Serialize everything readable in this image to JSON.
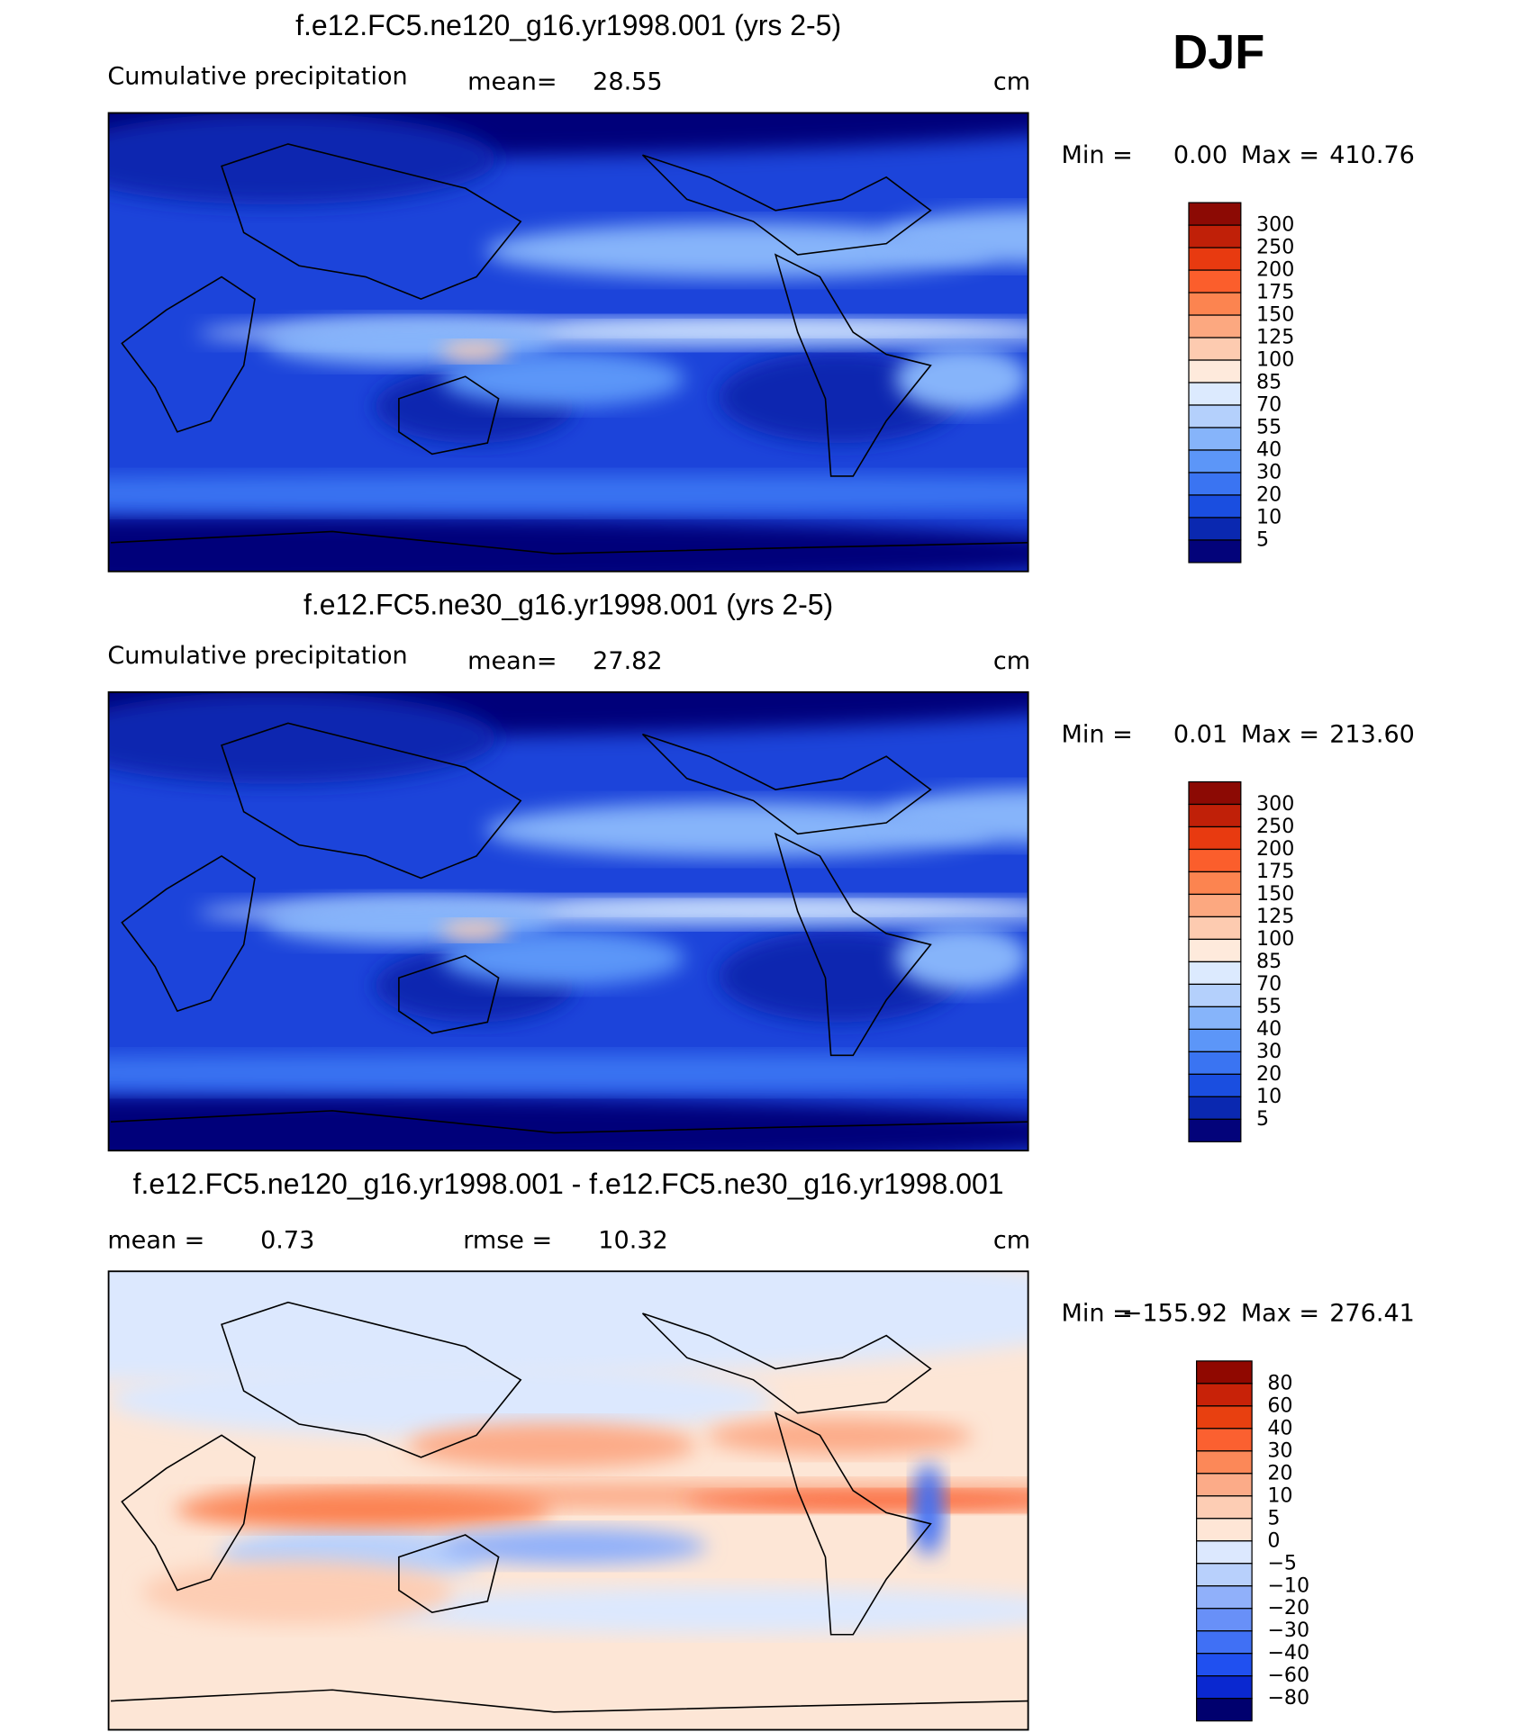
{
  "season": "DJF",
  "panels": [
    {
      "title": "f.e12.FC5.ne120_g16.yr1998.001 (yrs 2-5)",
      "label": "Cumulative precipitation",
      "stat1_label": "mean=",
      "stat1_value": "28.55",
      "units": "cm",
      "min_label": "Min =",
      "min_value": "0.00",
      "max_label": "Max =",
      "max_value": "410.76",
      "colorbar": {
        "labels": [
          "300",
          "250",
          "200",
          "175",
          "150",
          "125",
          "100",
          "85",
          "70",
          "55",
          "40",
          "30",
          "20",
          "10",
          "5"
        ],
        "colors": [
          "#8c0a04",
          "#c02008",
          "#e83a10",
          "#fb5e2c",
          "#fc8450",
          "#fca880",
          "#fdcbb0",
          "#feeadc",
          "#dceafe",
          "#b4d0fc",
          "#86b4fa",
          "#5c96f8",
          "#3a74f2",
          "#1a4ee0",
          "#0a28b0",
          "#03037a"
        ]
      }
    },
    {
      "title": "f.e12.FC5.ne30_g16.yr1998.001 (yrs 2-5)",
      "label": "Cumulative precipitation",
      "stat1_label": "mean=",
      "stat1_value": "27.82",
      "units": "cm",
      "min_label": "Min =",
      "min_value": "0.01",
      "max_label": "Max =",
      "max_value": "213.60",
      "colorbar": {
        "labels": [
          "300",
          "250",
          "200",
          "175",
          "150",
          "125",
          "100",
          "85",
          "70",
          "55",
          "40",
          "30",
          "20",
          "10",
          "5"
        ],
        "colors": [
          "#8c0a04",
          "#c02008",
          "#e83a10",
          "#fb5e2c",
          "#fc8450",
          "#fca880",
          "#fdcbb0",
          "#feeadc",
          "#dceafe",
          "#b4d0fc",
          "#86b4fa",
          "#5c96f8",
          "#3a74f2",
          "#1a4ee0",
          "#0a28b0",
          "#03037a"
        ]
      }
    },
    {
      "title": "f.e12.FC5.ne120_g16.yr1998.001 - f.e12.FC5.ne30_g16.yr1998.001",
      "stat1_label": "mean =",
      "stat1_value": "0.73",
      "stat2_label": "rmse =",
      "stat2_value": "10.32",
      "units": "cm",
      "min_label": "Min =",
      "min_value": "−155.92",
      "max_label": "Max =",
      "max_value": "276.41",
      "colorbar": {
        "labels": [
          "80",
          "60",
          "40",
          "30",
          "20",
          "10",
          "5",
          "0",
          "−5",
          "−10",
          "−20",
          "−30",
          "−40",
          "−60",
          "−80"
        ],
        "colors": [
          "#900800",
          "#c82208",
          "#e84010",
          "#fb6030",
          "#fc8858",
          "#fcab88",
          "#fdcdb4",
          "#fee6d6",
          "#dce8fe",
          "#b8d0fc",
          "#90b0fa",
          "#6890f8",
          "#4070f5",
          "#2050f0",
          "#0a28d0",
          "#00006e"
        ]
      }
    }
  ]
}
